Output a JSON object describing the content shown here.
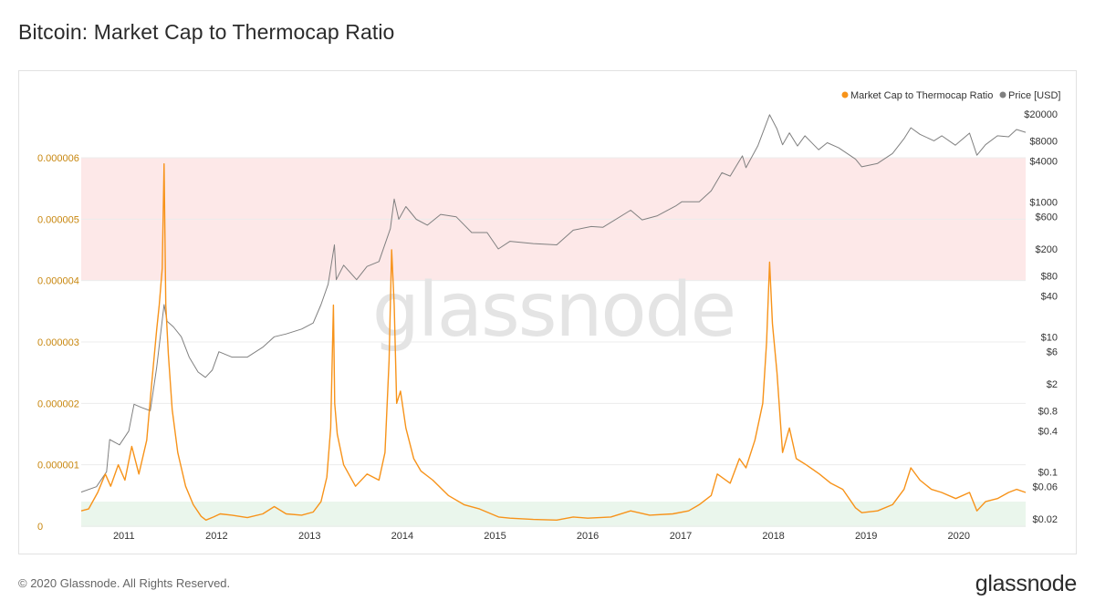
{
  "page": {
    "title": "Bitcoin: Market Cap to Thermocap Ratio",
    "copyright": "© 2020 Glassnode. All Rights Reserved.",
    "logo": "glassnode",
    "watermark": "glassnode"
  },
  "colors": {
    "ratio": "#f7931a",
    "price": "#808080",
    "red_band": "#fde8e8",
    "green_band": "#eaf6ec",
    "left_axis_text": "#c8870f",
    "right_axis_text": "#333333"
  },
  "chart_data": {
    "type": "line",
    "title": "Bitcoin: Market Cap to Thermocap Ratio",
    "legend": {
      "placement": "top-right",
      "entries": [
        {
          "name": "Market Cap to Thermocap Ratio",
          "color": "#f7931a",
          "icon": "dot"
        },
        {
          "name": "Price [USD]",
          "color": "#808080",
          "icon": "dot"
        }
      ]
    },
    "x_axis": {
      "range": [
        "2010-07-17",
        "2020-09-20"
      ],
      "ticks": [
        "2011",
        "2012",
        "2013",
        "2014",
        "2015",
        "2016",
        "2017",
        "2018",
        "2019",
        "2020"
      ]
    },
    "y_left": {
      "range": [
        0,
        6e-06
      ],
      "ticks": [
        "0",
        "0.000001",
        "0.000002",
        "0.000003",
        "0.000004",
        "0.000005",
        "0.000006"
      ]
    },
    "y_right": {
      "scale": "log",
      "range": [
        0.02,
        20000
      ],
      "ticks": [
        {
          "label": "$0.02",
          "value": 0.02
        },
        {
          "label": "$0.06",
          "value": 0.06
        },
        {
          "label": "$0.1",
          "value": 0.1
        },
        {
          "label": "$0.4",
          "value": 0.4
        },
        {
          "label": "$0.8",
          "value": 0.8
        },
        {
          "label": "$2",
          "value": 2
        },
        {
          "label": "$6",
          "value": 6
        },
        {
          "label": "$10",
          "value": 10
        },
        {
          "label": "$40",
          "value": 40
        },
        {
          "label": "$80",
          "value": 80
        },
        {
          "label": "$200",
          "value": 200
        },
        {
          "label": "$600",
          "value": 600
        },
        {
          "label": "$1000",
          "value": 1000
        },
        {
          "label": "$4000",
          "value": 4000
        },
        {
          "label": "$8000",
          "value": 8000
        },
        {
          "label": "$20000",
          "value": 20000
        }
      ]
    },
    "bands": [
      {
        "axis": "left",
        "from": 4e-06,
        "to": 6e-06
      },
      {
        "axis": "left",
        "from": 0,
        "to": 4e-07
      }
    ],
    "grid": true,
    "series": [
      {
        "name": "Market Cap to Thermocap Ratio",
        "axis": "left",
        "x": [
          "2010-07-17",
          "2010-08-15",
          "2010-09-20",
          "2010-10-20",
          "2010-11-10",
          "2010-12-10",
          "2011-01-05",
          "2011-02-01",
          "2011-03-01",
          "2011-04-01",
          "2011-04-20",
          "2011-05-10",
          "2011-05-20",
          "2011-06-01",
          "2011-06-08",
          "2011-06-15",
          "2011-06-25",
          "2011-07-10",
          "2011-08-01",
          "2011-09-01",
          "2011-10-01",
          "2011-11-01",
          "2011-11-20",
          "2011-12-20",
          "2012-01-15",
          "2012-03-01",
          "2012-05-01",
          "2012-07-01",
          "2012-08-15",
          "2012-10-01",
          "2012-12-01",
          "2013-01-15",
          "2013-02-15",
          "2013-03-10",
          "2013-03-25",
          "2013-04-05",
          "2013-04-10",
          "2013-04-20",
          "2013-05-15",
          "2013-07-01",
          "2013-08-15",
          "2013-10-01",
          "2013-10-25",
          "2013-11-10",
          "2013-11-20",
          "2013-11-30",
          "2013-12-10",
          "2013-12-25",
          "2014-01-15",
          "2014-02-15",
          "2014-03-15",
          "2014-05-01",
          "2014-07-01",
          "2014-09-01",
          "2014-11-01",
          "2015-01-15",
          "2015-03-01",
          "2015-06-01",
          "2015-09-01",
          "2015-11-05",
          "2016-01-01",
          "2016-04-01",
          "2016-06-18",
          "2016-09-01",
          "2016-12-01",
          "2017-02-01",
          "2017-03-15",
          "2017-05-01",
          "2017-05-25",
          "2017-07-15",
          "2017-08-20",
          "2017-09-15",
          "2017-10-20",
          "2017-11-20",
          "2017-12-05",
          "2017-12-17",
          "2017-12-28",
          "2018-01-15",
          "2018-02-06",
          "2018-03-05",
          "2018-04-01",
          "2018-05-10",
          "2018-07-01",
          "2018-08-15",
          "2018-10-01",
          "2018-11-20",
          "2018-12-15",
          "2019-02-15",
          "2019-04-15",
          "2019-05-30",
          "2019-06-26",
          "2019-08-01",
          "2019-09-15",
          "2019-10-25",
          "2019-12-20",
          "2020-02-12",
          "2020-03-12",
          "2020-04-15",
          "2020-06-01",
          "2020-07-15",
          "2020-08-15",
          "2020-09-20"
        ],
        "values": [
          2.5e-07,
          2.8e-07,
          5.5e-07,
          8.5e-07,
          6.5e-07,
          1e-06,
          7.5e-07,
          1.3e-06,
          8.5e-07,
          1.4e-06,
          2.3e-06,
          3.2e-06,
          3.6e-06,
          4.2e-06,
          5.9e-06,
          3.6e-06,
          2.8e-06,
          1.9e-06,
          1.2e-06,
          6.5e-07,
          3.5e-07,
          1.6e-07,
          1e-07,
          1.5e-07,
          2e-07,
          1.8e-07,
          1.4e-07,
          2e-07,
          3.2e-07,
          2e-07,
          1.8e-07,
          2.3e-07,
          4e-07,
          8e-07,
          1.6e-06,
          3.6e-06,
          2e-06,
          1.5e-06,
          1e-06,
          6.5e-07,
          8.5e-07,
          7.5e-07,
          1.2e-06,
          2.7e-06,
          4.5e-06,
          3.6e-06,
          2e-06,
          2.2e-06,
          1.6e-06,
          1.1e-06,
          9e-07,
          7.5e-07,
          5e-07,
          3.5e-07,
          2.8e-07,
          1.5e-07,
          1.3e-07,
          1.1e-07,
          1e-07,
          1.5e-07,
          1.3e-07,
          1.5e-07,
          2.5e-07,
          1.8e-07,
          2e-07,
          2.5e-07,
          3.5e-07,
          5e-07,
          8.5e-07,
          7e-07,
          1.1e-06,
          9.5e-07,
          1.4e-06,
          2e-06,
          3e-06,
          4.3e-06,
          3.3e-06,
          2.5e-06,
          1.2e-06,
          1.6e-06,
          1.1e-06,
          1e-06,
          8.5e-07,
          7e-07,
          6e-07,
          3e-07,
          2.2e-07,
          2.5e-07,
          3.5e-07,
          6e-07,
          9.5e-07,
          7.5e-07,
          6e-07,
          5.5e-07,
          4.5e-07,
          5.5e-07,
          2.5e-07,
          4e-07,
          4.5e-07,
          5.5e-07,
          6e-07,
          5.5e-07
        ]
      },
      {
        "name": "Price [USD]",
        "axis": "right",
        "x": [
          "2010-07-17",
          "2010-09-15",
          "2010-10-25",
          "2010-11-06",
          "2010-12-15",
          "2011-01-20",
          "2011-02-10",
          "2011-03-10",
          "2011-04-15",
          "2011-05-10",
          "2011-06-08",
          "2011-06-20",
          "2011-07-15",
          "2011-08-15",
          "2011-09-15",
          "2011-10-20",
          "2011-11-18",
          "2011-12-15",
          "2012-01-10",
          "2012-03-01",
          "2012-05-01",
          "2012-07-01",
          "2012-08-15",
          "2012-10-01",
          "2012-12-01",
          "2013-01-15",
          "2013-02-15",
          "2013-03-15",
          "2013-04-09",
          "2013-04-16",
          "2013-05-15",
          "2013-07-05",
          "2013-08-15",
          "2013-10-01",
          "2013-11-15",
          "2013-11-30",
          "2013-12-18",
          "2014-01-15",
          "2014-02-25",
          "2014-04-10",
          "2014-06-01",
          "2014-08-01",
          "2014-10-01",
          "2014-12-01",
          "2015-01-14",
          "2015-03-01",
          "2015-06-01",
          "2015-09-01",
          "2015-11-05",
          "2016-01-15",
          "2016-03-01",
          "2016-06-18",
          "2016-08-02",
          "2016-10-01",
          "2016-12-15",
          "2017-01-05",
          "2017-03-15",
          "2017-05-01",
          "2017-06-12",
          "2017-07-15",
          "2017-09-01",
          "2017-09-15",
          "2017-11-01",
          "2017-12-17",
          "2018-01-15",
          "2018-02-06",
          "2018-03-05",
          "2018-04-06",
          "2018-05-05",
          "2018-06-28",
          "2018-08-01",
          "2018-09-15",
          "2018-11-20",
          "2018-12-15",
          "2019-02-15",
          "2019-04-15",
          "2019-05-30",
          "2019-06-26",
          "2019-08-01",
          "2019-09-25",
          "2019-10-26",
          "2019-12-18",
          "2020-02-12",
          "2020-03-12",
          "2020-04-15",
          "2020-06-01",
          "2020-07-15",
          "2020-08-15",
          "2020-09-20"
        ],
        "values": [
          0.05,
          0.06,
          0.1,
          0.3,
          0.25,
          0.4,
          1.0,
          0.9,
          0.8,
          3.5,
          30,
          17,
          14,
          10,
          5,
          3,
          2.5,
          3.2,
          6,
          5,
          5,
          7,
          10,
          11,
          13,
          16,
          30,
          60,
          230,
          70,
          115,
          70,
          110,
          130,
          400,
          1100,
          550,
          850,
          550,
          450,
          650,
          600,
          350,
          350,
          200,
          260,
          240,
          230,
          380,
          430,
          420,
          750,
          540,
          620,
          880,
          1000,
          1000,
          1450,
          2700,
          2400,
          4800,
          3200,
          6800,
          19500,
          12000,
          7000,
          10500,
          6700,
          9500,
          5900,
          7500,
          6300,
          4300,
          3300,
          3700,
          5200,
          8600,
          12500,
          10000,
          8000,
          9500,
          6900,
          10400,
          4900,
          7000,
          9500,
          9200,
          11800,
          10700
        ]
      }
    ]
  }
}
